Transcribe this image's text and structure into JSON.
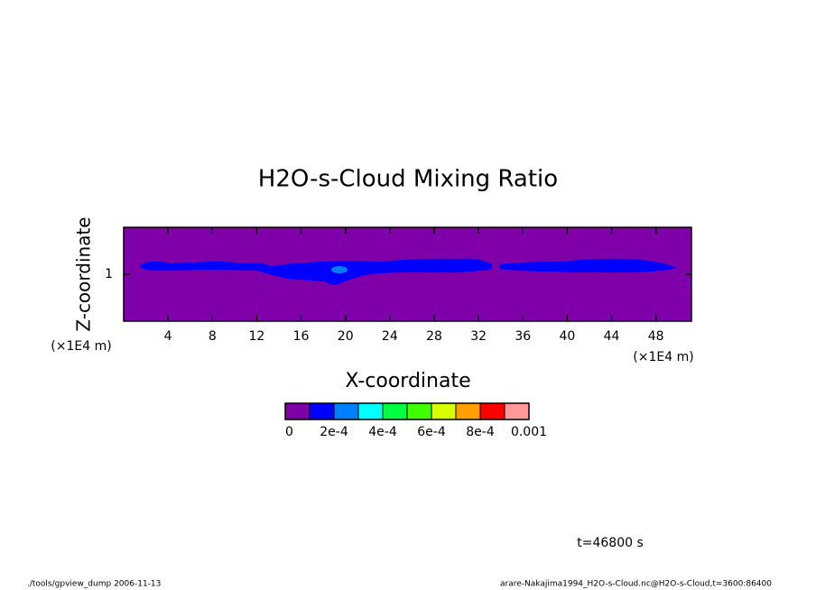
{
  "chart_data": {
    "type": "contour",
    "title": "H2O-s-Cloud Mixing Ratio",
    "x_label": "X-coordinate",
    "y_label": "Z-coordinate",
    "x_unit": "(×1E4 m)",
    "y_unit": "(×1E4 m)",
    "xlim": [
      0,
      51.2
    ],
    "xticks": [
      4,
      8,
      12,
      16,
      20,
      24,
      28,
      32,
      36,
      40,
      44,
      48
    ],
    "ylim": [
      0.5,
      1.5
    ],
    "yticks": [
      1
    ],
    "background_color": "#7f00a8",
    "colorbar": {
      "levels": [
        0,
        0.0001,
        0.0002,
        0.0003,
        0.0004,
        0.0005,
        0.0006,
        0.0007,
        0.0008,
        0.0009,
        0.001
      ],
      "colors": [
        "#7f00a8",
        "#0000ff",
        "#0080ff",
        "#00ffff",
        "#00ff40",
        "#40ff00",
        "#d8ff00",
        "#ffa000",
        "#ff0000",
        "#ff9898"
      ],
      "ticks": [
        0,
        {
          "value": 0.0002,
          "label": "2e-4"
        },
        {
          "value": 0.0004,
          "label": "4e-4"
        },
        {
          "value": 0.0006,
          "label": "6e-4"
        },
        {
          "value": 0.0008,
          "label": "8e-4"
        },
        0.001
      ]
    },
    "time_label": "t=46800 s",
    "footer_left": "./tools/gpview_dump  2006-11-13",
    "footer_right": "arare-Nakajima1994_H2O-s-Cloud.nc@H2O-s-Cloud,t=3600:86400"
  }
}
